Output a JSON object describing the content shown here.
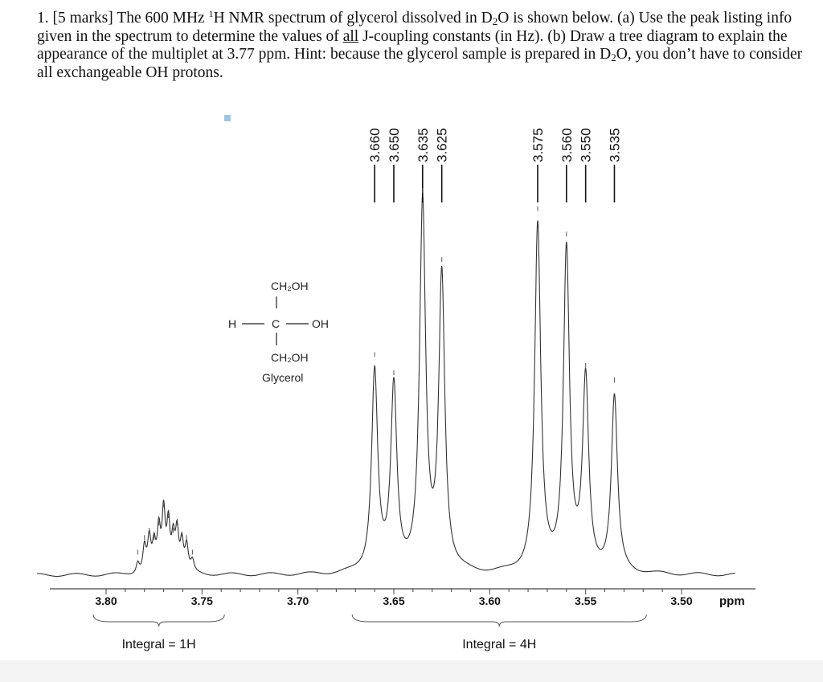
{
  "question": {
    "number": "1.",
    "marks": "[5 marks]",
    "text_before_isotope": "The 600 MHz",
    "isotope_mass": "1",
    "isotope_symbol": "H NMR spectrum of glycerol dissolved in D",
    "d2o_sub": "2",
    "text_after_d2o": "O is shown below. (a) Use the peak listing info given in the spectrum to determine the values of",
    "underlined_word": "all",
    "text_part_a_end": "J-coupling constants (in Hz). (b) Draw a tree diagram to explain the appearance of the multiplet at 3.77 ppm. Hint: because the glycerol sample is prepared in D",
    "d2o_sub_2": "2",
    "text_end": "O, you don’t have to consider all exchangeable OH protons."
  },
  "structure": {
    "top_group": "CH₂OH",
    "h_atom": "H",
    "c_atom": "C",
    "oh_group": "OH",
    "bottom_group": "CH₂OH",
    "name": "Glycerol"
  },
  "chart_data": {
    "type": "line",
    "title": "",
    "xlabel": "ppm",
    "ylabel": "",
    "x_reversed": true,
    "xlim": [
      3.805,
      3.495
    ],
    "x_ticks": [
      "3.80",
      "3.75",
      "3.70",
      "3.65",
      "3.60",
      "3.55",
      "3.50"
    ],
    "x_tick_values": [
      3.8,
      3.75,
      3.7,
      3.65,
      3.6,
      3.55,
      3.5
    ],
    "peak_labels": [
      "3.660",
      "3.650",
      "3.635",
      "3.625",
      "3.575",
      "3.560",
      "3.550",
      "3.535"
    ],
    "peak_label_values": [
      3.66,
      3.65,
      3.635,
      3.625,
      3.575,
      3.56,
      3.55,
      3.535
    ],
    "peaks": [
      {
        "ppm": 3.66,
        "height": 0.55
      },
      {
        "ppm": 3.65,
        "height": 0.5
      },
      {
        "ppm": 3.635,
        "height": 1.0
      },
      {
        "ppm": 3.625,
        "height": 0.81
      },
      {
        "ppm": 3.575,
        "height": 0.95
      },
      {
        "ppm": 3.56,
        "height": 0.88
      },
      {
        "ppm": 3.55,
        "height": 0.52
      },
      {
        "ppm": 3.535,
        "height": 0.48
      }
    ],
    "multiplet_peaks": [
      {
        "ppm": 3.7835,
        "height": 0.03
      },
      {
        "ppm": 3.78,
        "height": 0.07
      },
      {
        "ppm": 3.7775,
        "height": 0.09
      },
      {
        "ppm": 3.775,
        "height": 0.07
      },
      {
        "ppm": 3.7725,
        "height": 0.11
      },
      {
        "ppm": 3.77,
        "height": 0.16
      },
      {
        "ppm": 3.7675,
        "height": 0.13
      },
      {
        "ppm": 3.765,
        "height": 0.09
      },
      {
        "ppm": 3.763,
        "height": 0.11
      },
      {
        "ppm": 3.7605,
        "height": 0.08
      },
      {
        "ppm": 3.758,
        "height": 0.07
      },
      {
        "ppm": 3.755,
        "height": 0.03
      }
    ],
    "integrals": [
      {
        "label": "Integral = 1H",
        "from": 3.8,
        "to": 3.745
      },
      {
        "label": "Integral = 4H",
        "from": 3.665,
        "to": 3.525
      }
    ]
  }
}
